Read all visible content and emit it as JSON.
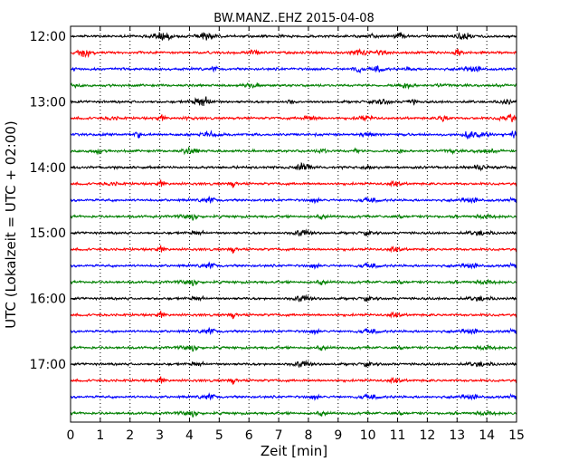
{
  "chart_data": {
    "type": "line",
    "title": "BW.MANZ..EHZ 2015-04-08",
    "xlabel": "Zeit  [min]",
    "ylabel": "UTC (Lokalzeit = UTC + 02:00)",
    "xlim": [
      0,
      15
    ],
    "x_ticks": [
      "0",
      "1",
      "2",
      "3",
      "4",
      "5",
      "6",
      "7",
      "8",
      "9",
      "10",
      "11",
      "12",
      "13",
      "14",
      "15"
    ],
    "y_tick_labels": [
      "12:00",
      "13:00",
      "14:00",
      "15:00",
      "16:00",
      "17:00"
    ],
    "trace_minutes": 15,
    "trace_count": 24,
    "first_trace_start": "12:00",
    "grid": {
      "vertical": "dotted",
      "horizontal": false
    },
    "trace_colors": [
      "#000000",
      "#ff0000",
      "#0000ff",
      "#008000"
    ]
  }
}
